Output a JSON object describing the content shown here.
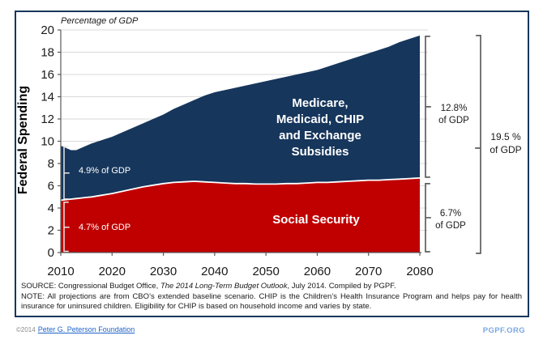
{
  "chart_data": {
    "type": "area",
    "stacked": true,
    "title": "",
    "axis_note": "Percentage of GDP",
    "ylabel": "Federal Spending",
    "xlabel": "",
    "grid": true,
    "legend_position": "none",
    "ylim": [
      0,
      20
    ],
    "yticks": [
      0,
      2,
      4,
      6,
      8,
      10,
      12,
      14,
      16,
      18,
      20
    ],
    "xticks": [
      2010,
      2020,
      2030,
      2040,
      2050,
      2060,
      2070,
      2080
    ],
    "x": [
      2010,
      2011,
      2012,
      2013,
      2014,
      2015,
      2016,
      2018,
      2020,
      2022,
      2024,
      2026,
      2028,
      2030,
      2032,
      2034,
      2036,
      2038,
      2040,
      2042,
      2044,
      2046,
      2048,
      2050,
      2052,
      2054,
      2056,
      2058,
      2060,
      2062,
      2064,
      2066,
      2068,
      2070,
      2072,
      2074,
      2076,
      2078,
      2080
    ],
    "series": [
      {
        "name": "Social Security",
        "color": "#c00000",
        "values": [
          4.7,
          4.75,
          4.8,
          4.85,
          4.9,
          4.95,
          5.0,
          5.15,
          5.3,
          5.5,
          5.7,
          5.9,
          6.05,
          6.2,
          6.3,
          6.35,
          6.4,
          6.35,
          6.3,
          6.25,
          6.2,
          6.2,
          6.15,
          6.15,
          6.15,
          6.2,
          6.2,
          6.25,
          6.3,
          6.3,
          6.35,
          6.4,
          6.45,
          6.5,
          6.5,
          6.55,
          6.6,
          6.65,
          6.7
        ]
      },
      {
        "name": "Medicare, Medicaid, CHIP and Exchange Subsidies",
        "color": "#16365c",
        "values": [
          4.9,
          4.65,
          4.4,
          4.35,
          4.5,
          4.65,
          4.8,
          4.95,
          5.1,
          5.3,
          5.5,
          5.7,
          5.95,
          6.2,
          6.6,
          6.95,
          7.3,
          7.75,
          8.1,
          8.35,
          8.6,
          8.8,
          9.05,
          9.25,
          9.45,
          9.6,
          9.8,
          9.95,
          10.1,
          10.4,
          10.65,
          10.9,
          11.15,
          11.4,
          11.7,
          11.95,
          12.3,
          12.55,
          12.8
        ]
      }
    ],
    "annotations": {
      "medicare_label": "Medicare,\nMedicaid, CHIP\nand Exchange\nSubsidies",
      "social_security_label": "Social Security",
      "left_top": "4.9% of GDP",
      "left_bottom": "4.7% of GDP",
      "right_top_value": "12.8%",
      "right_top_unit": "of GDP",
      "right_bottom_value": "6.7%",
      "right_bottom_unit": "of GDP",
      "total_value": "19.5 %",
      "total_unit": "of GDP"
    },
    "colors": {
      "gridline": "#d9d9d9",
      "axis": "#595959",
      "divider_line": "#ffffff",
      "left_bracket": "#e8e8e8",
      "right_bracket": "#5f5f5f",
      "frame_border": "#16365c"
    }
  },
  "footnotes": {
    "source_prefix": "SOURCE: Congressional Budget Office, ",
    "source_title": "The 2014 Long-Term Budget Outlook",
    "source_suffix": ", July 2014. Compiled by PGPF.",
    "note": "NOTE: All projections are from CBO’s extended baseline scenario. CHIP is the Children’s Health Insurance Program and helps pay for health insurance for uninsured children. Eligibility for CHIP is based on household income and varies by state."
  },
  "footer": {
    "copyright": "©2014",
    "org_link": "Peter G. Peterson Foundation",
    "site": "PGPF.ORG"
  }
}
